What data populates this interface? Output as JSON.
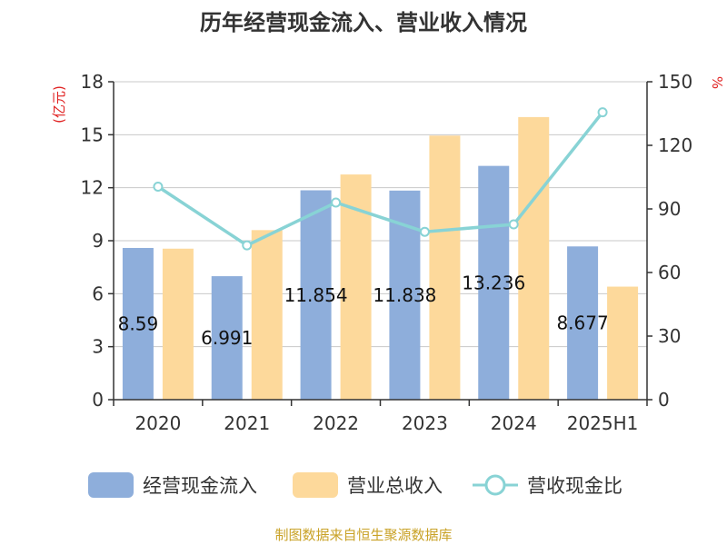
{
  "chart_data": {
    "type": "bar",
    "title": "历年经营现金流入、营业收入情况",
    "categories": [
      "2020",
      "2021",
      "2022",
      "2023",
      "2024",
      "2025H1"
    ],
    "y_left": {
      "unit": "(亿元)",
      "ylim": [
        0,
        18
      ],
      "ticks": [
        0,
        3,
        6,
        9,
        12,
        15,
        18
      ]
    },
    "y_right": {
      "unit": "%",
      "ylim": [
        0,
        150
      ],
      "ticks": [
        0,
        30,
        60,
        90,
        120,
        150
      ]
    },
    "series": [
      {
        "name": "经营现金流入",
        "kind": "bar",
        "axis": "left",
        "color": "#8eaedb",
        "values": [
          8.59,
          6.991,
          11.854,
          11.838,
          13.236,
          8.677
        ],
        "labels": [
          "8.59",
          "6.991",
          "11.854",
          "11.838",
          "13.236",
          "8.677"
        ]
      },
      {
        "name": "营业总收入",
        "kind": "bar",
        "axis": "left",
        "color": "#fdd99b",
        "values": [
          8.55,
          9.6,
          12.75,
          14.95,
          16.0,
          6.4
        ]
      },
      {
        "name": "营收现金比",
        "kind": "line",
        "axis": "right",
        "color": "#88d3d5",
        "values": [
          100.5,
          72.8,
          93.0,
          79.2,
          82.7,
          135.6
        ]
      }
    ],
    "grid": true,
    "legend_position": "bottom",
    "source": "制图数据来自恒生聚源数据库"
  }
}
